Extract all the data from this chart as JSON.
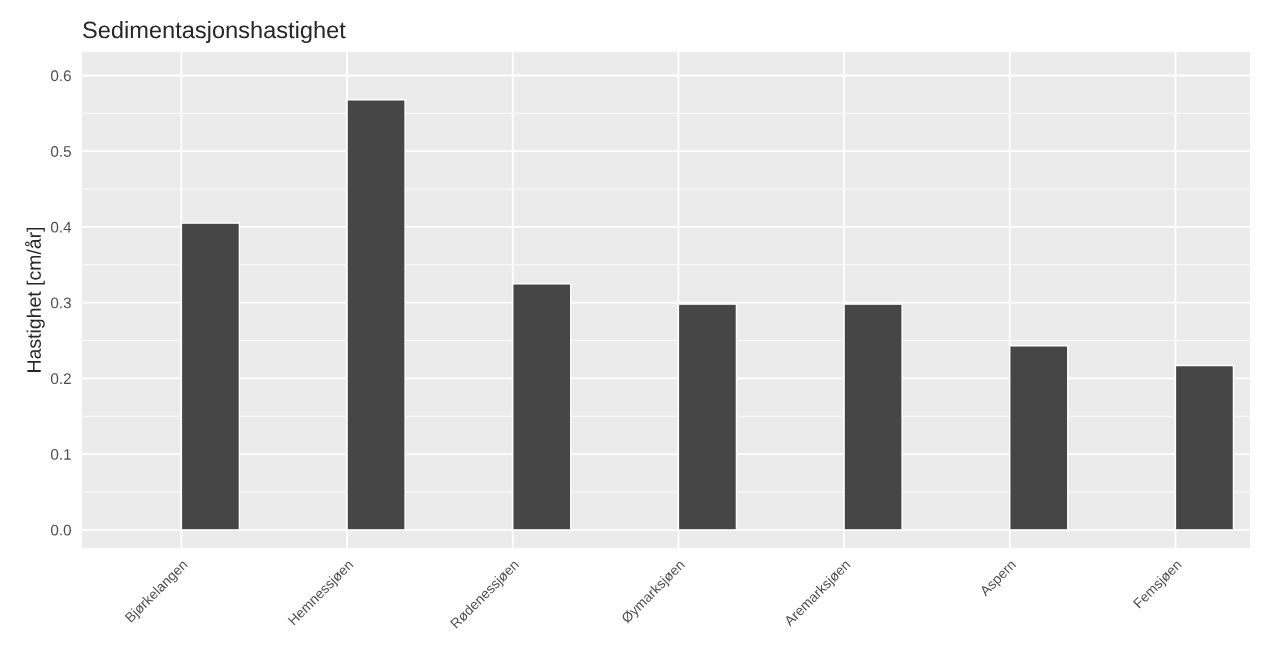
{
  "chart_data": {
    "type": "bar",
    "title": "Sedimentasjonshastighet",
    "ylabel": "Hastighet [cm/år]",
    "categories": [
      "Bjørkelangen",
      "Hemnessjøen",
      "Rødenessjøen",
      "Øymarksjøen",
      "Aremarksjøen",
      "Aspern",
      "Femsjøen"
    ],
    "values": [
      0.405,
      0.568,
      0.325,
      0.298,
      0.298,
      0.243,
      0.217
    ],
    "color": "#464646",
    "ylim": [
      -0.024,
      0.631
    ],
    "yticks": [
      {
        "value": 0,
        "label": "0.0"
      },
      {
        "value": 0.1,
        "label": "0.1"
      },
      {
        "value": 0.2,
        "label": "0.2"
      },
      {
        "value": 0.3,
        "label": "0.3"
      },
      {
        "value": 0.4,
        "label": "0.4"
      },
      {
        "value": 0.5,
        "label": "0.5"
      },
      {
        "value": 0.6,
        "label": "0.6"
      }
    ],
    "grid": true
  }
}
